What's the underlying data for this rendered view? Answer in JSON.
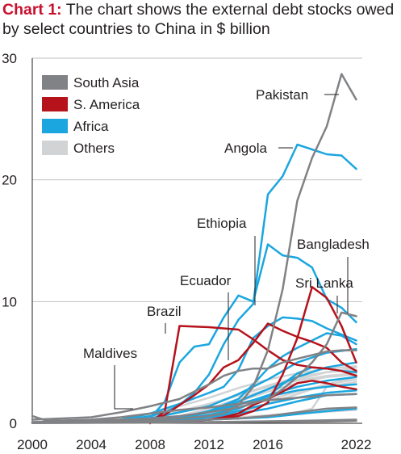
{
  "title": {
    "label": "Chart 1:",
    "text": " The chart shows the external debt stocks owed by select countries to China in $ billion"
  },
  "chart_data": {
    "type": "line",
    "title": "Chart 1: The chart shows the external debt stocks owed by select countries to China in $ billion",
    "xlabel": "",
    "ylabel": "",
    "xlim": [
      2000,
      2022.3
    ],
    "ylim": [
      0,
      30
    ],
    "xticks": [
      "2000",
      "2004",
      "2008",
      "2012",
      "2016",
      "2022"
    ],
    "xtick_values": [
      2000,
      2004,
      2008,
      2012,
      2016,
      2022
    ],
    "yticks": [
      "0",
      "10",
      "20",
      "30"
    ],
    "ytick_values": [
      0,
      10,
      20,
      30
    ],
    "grid": "horizontal",
    "legend_position": "top-left",
    "legend": [
      {
        "name": "South Asia",
        "color": "#808285"
      },
      {
        "name": "S. America",
        "color": "#b5121b"
      },
      {
        "name": "Africa",
        "color": "#1ba6df"
      },
      {
        "name": "Others",
        "color": "#d2d3d5"
      }
    ],
    "annotations": [
      {
        "text": "Pakistan"
      },
      {
        "text": "Angola"
      },
      {
        "text": "Ethiopia"
      },
      {
        "text": "Bangladesh"
      },
      {
        "text": "Ecuador"
      },
      {
        "text": "Sri Lanka"
      },
      {
        "text": "Brazil"
      },
      {
        "text": "Maldives"
      }
    ],
    "series": [
      {
        "group": "Others",
        "x": [
          2004,
          2006,
          2008,
          2010,
          2012,
          2014,
          2016,
          2018,
          2020,
          2022
        ],
        "y": [
          0.1,
          0.3,
          0.8,
          1.4,
          2.1,
          2.9,
          3.6,
          4.1,
          4.5,
          4.7
        ]
      },
      {
        "group": "Others",
        "x": [
          2006,
          2008,
          2010,
          2012,
          2014,
          2016,
          2018,
          2020,
          2022
        ],
        "y": [
          0.2,
          0.5,
          1.0,
          1.6,
          2.3,
          3.1,
          3.8,
          4.2,
          4.4
        ]
      },
      {
        "group": "Others",
        "x": [
          2008,
          2010,
          2012,
          2014,
          2016,
          2018,
          2020,
          2022
        ],
        "y": [
          0.1,
          0.6,
          1.2,
          2.0,
          2.8,
          3.6,
          4.2,
          4.6
        ]
      },
      {
        "group": "Others",
        "x": [
          2000,
          2004,
          2008,
          2010,
          2012,
          2014,
          2016,
          2018,
          2020,
          2022
        ],
        "y": [
          0.1,
          0.2,
          0.4,
          0.9,
          1.5,
          2.3,
          3.0,
          3.5,
          3.9,
          4.1
        ]
      },
      {
        "group": "Others",
        "x": [
          2010,
          2012,
          2014,
          2016,
          2018,
          2020,
          2022
        ],
        "y": [
          0.3,
          1.0,
          1.8,
          2.6,
          3.3,
          3.8,
          4.0
        ]
      },
      {
        "group": "Others",
        "x": [
          2008,
          2010,
          2012,
          2014,
          2016,
          2018,
          2020,
          2022
        ],
        "y": [
          0.2,
          0.4,
          0.9,
          1.3,
          1.9,
          2.6,
          3.2,
          3.6
        ]
      },
      {
        "group": "Others",
        "x": [
          2012,
          2014,
          2016,
          2018,
          2020,
          2022
        ],
        "y": [
          0.2,
          0.9,
          1.6,
          2.4,
          3.2,
          3.8
        ]
      },
      {
        "group": "Others",
        "x": [
          2004,
          2008,
          2012,
          2016,
          2018,
          2019,
          2020,
          2022
        ],
        "y": [
          0.1,
          0.2,
          0.4,
          0.6,
          0.9,
          1.2,
          3.0,
          3.4
        ]
      },
      {
        "group": "Others",
        "x": [
          2000,
          2006,
          2010,
          2014,
          2018,
          2022
        ],
        "y": [
          0.05,
          0.1,
          0.3,
          0.5,
          0.8,
          1.1
        ]
      },
      {
        "group": "Africa",
        "x": [
          2007,
          2008,
          2009,
          2010,
          2011,
          2012,
          2013,
          2014,
          2015,
          2016,
          2017,
          2018,
          2019,
          2020,
          2021,
          2022
        ],
        "y": [
          0.4,
          0.6,
          0.9,
          1.5,
          2.5,
          4.0,
          6.5,
          8.5,
          9.8,
          18.8,
          20.3,
          22.9,
          22.5,
          22.1,
          22.0,
          20.9
        ]
      },
      {
        "group": "Africa",
        "x": [
          2006,
          2008,
          2009,
          2010,
          2011,
          2012,
          2013,
          2014,
          2015,
          2016,
          2017,
          2018,
          2019,
          2020,
          2021,
          2022
        ],
        "y": [
          0.2,
          0.4,
          1.8,
          5.0,
          6.3,
          6.5,
          8.7,
          10.5,
          10.0,
          14.7,
          13.8,
          13.6,
          12.8,
          10.2,
          9.5,
          8.3
        ]
      },
      {
        "group": "Africa",
        "x": [
          2006,
          2008,
          2010,
          2012,
          2013,
          2014,
          2015,
          2016,
          2017,
          2018,
          2019,
          2020,
          2021,
          2022
        ],
        "y": [
          0.3,
          0.8,
          1.6,
          2.5,
          3.0,
          4.4,
          7.0,
          8.0,
          8.7,
          8.6,
          8.4,
          7.8,
          7.3,
          6.8
        ]
      },
      {
        "group": "Africa",
        "x": [
          2008,
          2010,
          2012,
          2014,
          2015,
          2016,
          2017,
          2018,
          2019,
          2020,
          2021,
          2022
        ],
        "y": [
          0.1,
          0.4,
          1.0,
          2.0,
          3.2,
          4.5,
          5.5,
          6.2,
          6.8,
          7.4,
          7.2,
          6.5
        ]
      },
      {
        "group": "Africa",
        "x": [
          2004,
          2006,
          2008,
          2010,
          2012,
          2014,
          2016,
          2018,
          2020,
          2022
        ],
        "y": [
          0.1,
          0.2,
          0.4,
          0.9,
          1.4,
          2.4,
          3.6,
          5.0,
          5.8,
          6.1
        ]
      },
      {
        "group": "Africa",
        "x": [
          2002,
          2006,
          2010,
          2012,
          2014,
          2016,
          2018,
          2020,
          2022
        ],
        "y": [
          0.1,
          0.2,
          0.5,
          1.0,
          1.8,
          2.8,
          3.8,
          4.6,
          5.0
        ]
      },
      {
        "group": "Africa",
        "x": [
          2006,
          2010,
          2012,
          2014,
          2016,
          2017,
          2018,
          2019,
          2020,
          2021,
          2022
        ],
        "y": [
          0.1,
          0.3,
          0.7,
          1.2,
          2.2,
          3.2,
          4.1,
          4.6,
          4.5,
          4.3,
          4.2
        ]
      },
      {
        "group": "Africa",
        "x": [
          2008,
          2010,
          2012,
          2014,
          2016,
          2018,
          2020,
          2022
        ],
        "y": [
          0.2,
          0.5,
          0.9,
          1.5,
          2.3,
          3.0,
          3.5,
          3.8
        ]
      },
      {
        "group": "Africa",
        "x": [
          2004,
          2008,
          2010,
          2012,
          2014,
          2016,
          2018,
          2020,
          2022
        ],
        "y": [
          0.1,
          0.2,
          0.4,
          0.9,
          1.6,
          2.2,
          2.7,
          3.0,
          3.2
        ]
      },
      {
        "group": "Africa",
        "x": [
          2008,
          2010,
          2012,
          2014,
          2016,
          2018,
          2020,
          2022
        ],
        "y": [
          0.1,
          0.3,
          0.6,
          1.0,
          1.6,
          2.1,
          2.5,
          2.7
        ]
      },
      {
        "group": "Africa",
        "x": [
          2010,
          2012,
          2014,
          2016,
          2018,
          2020,
          2022
        ],
        "y": [
          0.2,
          0.5,
          0.8,
          1.2,
          1.8,
          2.3,
          2.4
        ]
      },
      {
        "group": "Africa",
        "x": [
          2000,
          2004,
          2008,
          2012,
          2016,
          2020,
          2022
        ],
        "y": [
          0.05,
          0.1,
          0.2,
          0.3,
          0.5,
          1.0,
          1.2
        ]
      },
      {
        "group": "S. America",
        "x": [
          2008,
          2009,
          2010,
          2012,
          2014,
          2015,
          2016,
          2017,
          2018,
          2019,
          2020,
          2021,
          2022
        ],
        "y": [
          0.0,
          1.0,
          8.0,
          7.9,
          7.7,
          6.9,
          6.0,
          5.2,
          4.8,
          4.6,
          4.5,
          4.3,
          3.9
        ]
      },
      {
        "group": "S. America",
        "x": [
          2008,
          2009,
          2010,
          2011,
          2012,
          2013,
          2014,
          2015,
          2016,
          2017,
          2018,
          2019,
          2020,
          2021,
          2022
        ],
        "y": [
          0.2,
          0.7,
          1.5,
          2.3,
          3.2,
          4.6,
          5.2,
          6.6,
          8.2,
          7.6,
          7.1,
          6.7,
          6.2,
          5.0,
          4.3
        ]
      },
      {
        "group": "S. America",
        "x": [
          2012,
          2014,
          2015,
          2016,
          2017,
          2018,
          2019,
          2020,
          2021,
          2022
        ],
        "y": [
          0.3,
          0.6,
          1.0,
          1.7,
          4.0,
          7.0,
          11.2,
          10.3,
          8.0,
          5.0
        ]
      },
      {
        "group": "S. America",
        "x": [
          2011,
          2012,
          2013,
          2014,
          2015,
          2016,
          2017,
          2018,
          2019,
          2020,
          2021,
          2022
        ],
        "y": [
          0.2,
          0.3,
          0.5,
          0.8,
          1.5,
          2.0,
          2.6,
          3.3,
          3.5,
          3.3,
          3.0,
          2.8
        ]
      },
      {
        "group": "South Asia",
        "x": [
          2000,
          2004,
          2008,
          2010,
          2012,
          2013,
          2014,
          2015,
          2016,
          2017,
          2018,
          2019,
          2020,
          2021,
          2022
        ],
        "y": [
          0.1,
          0.2,
          0.3,
          0.4,
          0.6,
          0.8,
          1.5,
          3.0,
          6.0,
          11.0,
          18.3,
          21.8,
          24.4,
          28.7,
          26.6
        ]
      },
      {
        "group": "South Asia",
        "x": [
          2000,
          2004,
          2008,
          2010,
          2012,
          2014,
          2016,
          2017,
          2018,
          2019,
          2020,
          2021,
          2022
        ],
        "y": [
          0.1,
          0.2,
          0.4,
          0.6,
          0.9,
          1.3,
          2.0,
          2.8,
          3.8,
          5.0,
          6.5,
          9.1,
          8.8
        ]
      },
      {
        "group": "South Asia",
        "x": [
          2000,
          2004,
          2006,
          2008,
          2010,
          2011,
          2012,
          2013,
          2014,
          2015,
          2016,
          2017,
          2018,
          2019,
          2020,
          2021,
          2022
        ],
        "y": [
          0.3,
          0.5,
          0.9,
          1.4,
          2.0,
          2.6,
          3.2,
          3.9,
          4.3,
          4.5,
          4.5,
          5.0,
          5.3,
          5.6,
          5.9,
          6.0,
          6.0
        ]
      },
      {
        "group": "South Asia",
        "x": [
          2000,
          2001,
          2004,
          2006,
          2008,
          2010,
          2012,
          2014,
          2016,
          2018,
          2020,
          2022
        ],
        "y": [
          0.6,
          0.2,
          0.3,
          0.5,
          0.8,
          1.1,
          1.3,
          1.6,
          1.9,
          2.1,
          2.3,
          2.4
        ]
      },
      {
        "group": "South Asia",
        "x": [
          2002,
          2006,
          2010,
          2014,
          2016,
          2018,
          2020,
          2022
        ],
        "y": [
          0.05,
          0.1,
          0.2,
          0.4,
          0.6,
          0.9,
          1.2,
          1.3
        ]
      },
      {
        "group": "South Asia",
        "x": [
          2000,
          2006,
          2012,
          2018,
          2022
        ],
        "y": [
          0.05,
          0.05,
          0.1,
          0.2,
          0.3
        ]
      },
      {
        "group": "South Asia",
        "x": [
          2000,
          2008,
          2014,
          2020,
          2022
        ],
        "y": [
          0.02,
          0.05,
          0.1,
          0.15,
          0.2
        ]
      }
    ]
  }
}
